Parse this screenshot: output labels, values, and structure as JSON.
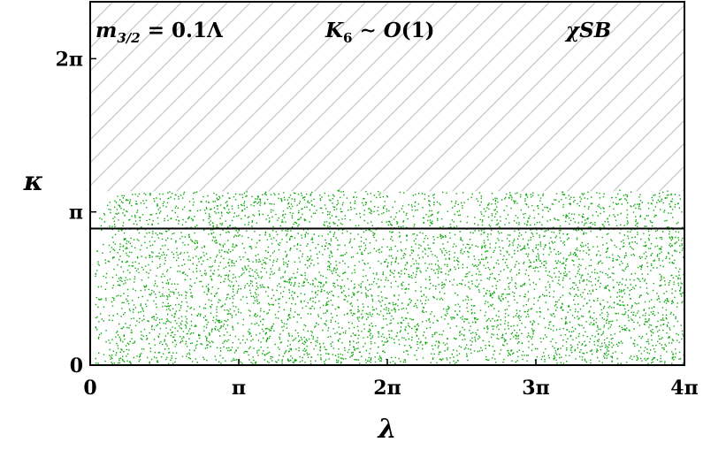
{
  "chart_data": {
    "type": "scatter",
    "title": "",
    "xlabel": "λ",
    "ylabel": "κ",
    "xlim": [
      0,
      12.566
    ],
    "ylim": [
      0,
      7.45
    ],
    "x_ticks": [
      {
        "value": 0,
        "label": "0"
      },
      {
        "value": 3.1416,
        "label": "π"
      },
      {
        "value": 6.2832,
        "label": "2π"
      },
      {
        "value": 9.4248,
        "label": "3π"
      },
      {
        "value": 12.566,
        "label": "4π"
      }
    ],
    "y_ticks": [
      {
        "value": 0,
        "label": "0"
      },
      {
        "value": 3.1416,
        "label": "π"
      },
      {
        "value": 6.2832,
        "label": "2π"
      }
    ],
    "annotations": [
      {
        "text": "m3/2 = 0.1Λ"
      },
      {
        "text": "K6 ∼ O(1)"
      },
      {
        "text": "χSB"
      }
    ],
    "excluded_region": {
      "y_from": 6.2832,
      "y_to": 7.45,
      "pattern": "hatched"
    },
    "horizontal_line": {
      "y": 2.8
    },
    "scatter_region": {
      "x_min": 0.1,
      "x_max": 12.566,
      "y_min": 0.04,
      "y_top_ramp": [
        [
          0.1,
          3.2
        ],
        [
          0.3,
          3.3
        ],
        [
          0.6,
          3.55
        ],
        [
          1.2,
          3.6
        ],
        [
          12.566,
          3.6
        ]
      ],
      "approx_points_shown": 30000
    },
    "colors": {
      "points": "#0aa80a",
      "hatch": "#c8c8c8",
      "line": "#000000",
      "axes": "#000000"
    },
    "grid": false,
    "legend": "none"
  }
}
